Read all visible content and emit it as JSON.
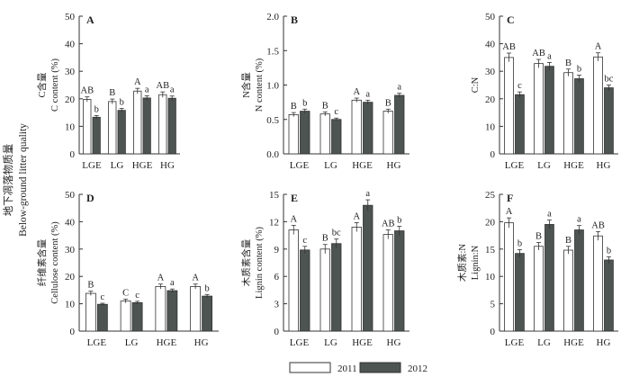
{
  "figure": {
    "ylabel_cn": "地下凋落物质量",
    "ylabel_en": "Below-ground litter quality"
  },
  "legend": [
    {
      "label": "2011",
      "color": "#ffffff"
    },
    {
      "label": "2012",
      "color": "#4d5452"
    }
  ],
  "colors": {
    "y2011": "#ffffff",
    "y2012": "#4d5452",
    "axis": "#333333"
  },
  "chart_data": [
    {
      "type": "bar",
      "panel": "A",
      "ylabel_cn": "C含量",
      "ylabel_en": "C content (%)",
      "categories": [
        "LGE",
        "LG",
        "HGE",
        "HG"
      ],
      "ylim": [
        0,
        50
      ],
      "yticks": [
        0,
        10,
        20,
        30,
        40,
        50
      ],
      "series": [
        {
          "name": "2011",
          "values": [
            19.8,
            19.0,
            22.8,
            21.5
          ],
          "errors": [
            0.9,
            0.9,
            1.0,
            1.0
          ],
          "letters": [
            "AB",
            "B",
            "A",
            "AB"
          ]
        },
        {
          "name": "2012",
          "values": [
            13.3,
            15.8,
            20.3,
            20.2
          ],
          "errors": [
            0.6,
            0.7,
            0.8,
            0.8
          ],
          "letters": [
            "b",
            "b",
            "a",
            "a"
          ]
        }
      ]
    },
    {
      "type": "bar",
      "panel": "B",
      "ylabel_cn": "N含量",
      "ylabel_en": "N content (%)",
      "categories": [
        "LGE",
        "LG",
        "HGE",
        "HG"
      ],
      "ylim": [
        0.0,
        2.0
      ],
      "yticks": [
        0.0,
        0.5,
        1.0,
        1.5,
        2.0
      ],
      "tick_decimals": 1,
      "series": [
        {
          "name": "2011",
          "values": [
            0.57,
            0.58,
            0.78,
            0.62
          ],
          "errors": [
            0.03,
            0.03,
            0.03,
            0.03
          ],
          "letters": [
            "B",
            "B",
            "A",
            "B"
          ]
        },
        {
          "name": "2012",
          "values": [
            0.62,
            0.5,
            0.75,
            0.85
          ],
          "errors": [
            0.03,
            0.02,
            0.03,
            0.03
          ],
          "letters": [
            "b",
            "c",
            "a",
            "a"
          ]
        }
      ]
    },
    {
      "type": "bar",
      "panel": "C",
      "ylabel_cn": "",
      "ylabel_en": "C:N",
      "categories": [
        "LGE",
        "LG",
        "HGE",
        "HG"
      ],
      "ylim": [
        0,
        50
      ],
      "yticks": [
        0,
        10,
        20,
        30,
        40,
        50
      ],
      "series": [
        {
          "name": "2011",
          "values": [
            35.0,
            32.8,
            29.5,
            35.2
          ],
          "errors": [
            1.6,
            1.5,
            1.3,
            1.5
          ],
          "letters": [
            "AB",
            "AB",
            "B",
            "A"
          ]
        },
        {
          "name": "2012",
          "values": [
            21.5,
            31.8,
            27.3,
            24.0
          ],
          "errors": [
            1.0,
            1.4,
            1.3,
            1.0
          ],
          "letters": [
            "c",
            "a",
            "b",
            "bc"
          ]
        }
      ]
    },
    {
      "type": "bar",
      "panel": "D",
      "ylabel_cn": "纤维素含量",
      "ylabel_en": "Cellulose content (%)",
      "categories": [
        "LGE",
        "LG",
        "HGE",
        "HG"
      ],
      "ylim": [
        0,
        50
      ],
      "yticks": [
        0,
        10,
        20,
        30,
        40,
        50
      ],
      "series": [
        {
          "name": "2011",
          "values": [
            13.8,
            11.0,
            16.3,
            16.3
          ],
          "errors": [
            0.8,
            0.7,
            0.9,
            0.9
          ],
          "letters": [
            "B",
            "C",
            "A",
            "A"
          ]
        },
        {
          "name": "2012",
          "values": [
            9.8,
            10.4,
            14.8,
            12.8
          ],
          "errors": [
            0.4,
            0.5,
            0.6,
            0.6
          ],
          "letters": [
            "c",
            "c",
            "a",
            "b"
          ]
        }
      ]
    },
    {
      "type": "bar",
      "panel": "E",
      "ylabel_cn": "木质素含量",
      "ylabel_en": "Lignin content (%)",
      "categories": [
        "LGE",
        "LG",
        "HGE",
        "HG"
      ],
      "ylim": [
        0,
        15
      ],
      "yticks": [
        0,
        3,
        6,
        9,
        12,
        15
      ],
      "series": [
        {
          "name": "2011",
          "values": [
            11.1,
            9.0,
            11.4,
            10.6
          ],
          "errors": [
            0.5,
            0.5,
            0.5,
            0.5
          ],
          "letters": [
            "A",
            "B",
            "A",
            "AB"
          ]
        },
        {
          "name": "2012",
          "values": [
            8.9,
            9.6,
            13.8,
            11.0
          ],
          "errors": [
            0.4,
            0.5,
            0.6,
            0.5
          ],
          "letters": [
            "c",
            "bc",
            "a",
            "b"
          ]
        }
      ]
    },
    {
      "type": "bar",
      "panel": "F",
      "ylabel_cn": "木质素:N",
      "ylabel_en": "Lignin:N",
      "categories": [
        "LGE",
        "LG",
        "HGE",
        "HG"
      ],
      "ylim": [
        0,
        25
      ],
      "yticks": [
        0,
        5,
        10,
        15,
        20,
        25
      ],
      "series": [
        {
          "name": "2011",
          "values": [
            19.8,
            15.5,
            14.8,
            17.4
          ],
          "errors": [
            0.9,
            0.7,
            0.7,
            0.8
          ],
          "letters": [
            "A",
            "B",
            "B",
            "AB"
          ]
        },
        {
          "name": "2012",
          "values": [
            14.2,
            19.5,
            18.5,
            13.0
          ],
          "errors": [
            0.7,
            0.8,
            0.8,
            0.6
          ],
          "letters": [
            "b",
            "a",
            "a",
            "b"
          ]
        }
      ]
    }
  ]
}
